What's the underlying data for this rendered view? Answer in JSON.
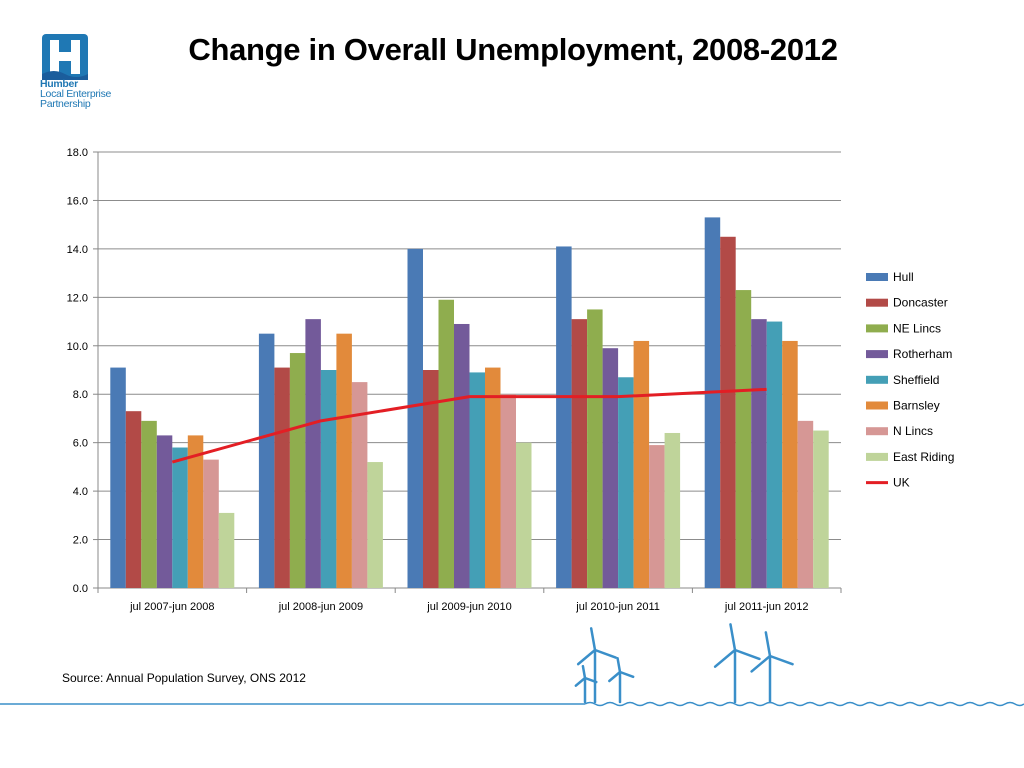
{
  "logo": {
    "name": "Humber",
    "line2": "Local Enterprise",
    "line3": "Partnership",
    "colors": {
      "blue": "#1f78b4",
      "dark_blue": "#1b5d9c"
    }
  },
  "title": "Change in Overall Unemployment, 2008-2012",
  "source": "Source: Annual Population Survey, ONS 2012",
  "chart_data": {
    "type": "bar",
    "title": "Change in Overall Unemployment, 2008-2012",
    "xlabel": "",
    "ylabel": "",
    "ylim": [
      0,
      18
    ],
    "yticks": [
      "0.0",
      "2.0",
      "4.0",
      "6.0",
      "8.0",
      "10.0",
      "12.0",
      "14.0",
      "16.0",
      "18.0"
    ],
    "grid": true,
    "legend_position": "right",
    "categories": [
      "jul 2007-jun 2008",
      "jul 2008-jun 2009",
      "jul 2009-jun 2010",
      "jul 2010-jun 2011",
      "jul 2011-jun 2012"
    ],
    "series": [
      {
        "name": "Hull",
        "type": "bar",
        "color": "#4a7ab5",
        "values": [
          9.1,
          10.5,
          14.0,
          14.1,
          15.3
        ]
      },
      {
        "name": "Doncaster",
        "type": "bar",
        "color": "#b24a47",
        "values": [
          7.3,
          9.1,
          9.0,
          11.1,
          14.5
        ]
      },
      {
        "name": "NE Lincs",
        "type": "bar",
        "color": "#8fad4e",
        "values": [
          6.9,
          9.7,
          11.9,
          11.5,
          12.3
        ]
      },
      {
        "name": "Rotherham",
        "type": "bar",
        "color": "#735a9a",
        "values": [
          6.3,
          11.1,
          10.9,
          9.9,
          11.1
        ]
      },
      {
        "name": "Sheffield",
        "type": "bar",
        "color": "#449fb6",
        "values": [
          5.8,
          9.0,
          8.9,
          8.7,
          11.0
        ]
      },
      {
        "name": "Barnsley",
        "type": "bar",
        "color": "#e28a3b",
        "values": [
          6.3,
          10.5,
          9.1,
          10.2,
          10.2
        ]
      },
      {
        "name": "N Lincs",
        "type": "bar",
        "color": "#d69795",
        "values": [
          5.3,
          8.5,
          8.0,
          5.9,
          6.9
        ]
      },
      {
        "name": "East Riding",
        "type": "bar",
        "color": "#bfd49a",
        "values": [
          3.1,
          5.2,
          6.0,
          6.4,
          6.5
        ]
      },
      {
        "name": "UK",
        "type": "line",
        "color": "#e31e24",
        "values": [
          5.2,
          6.9,
          7.9,
          7.9,
          8.2
        ]
      }
    ]
  }
}
